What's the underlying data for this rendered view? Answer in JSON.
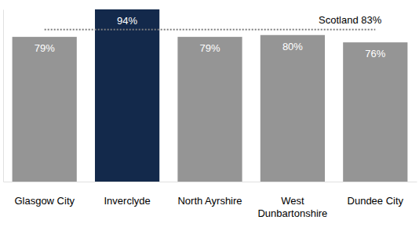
{
  "chart_data": {
    "type": "bar",
    "categories": [
      "Glasgow City",
      "Inverclyde",
      "North Ayrshire",
      "West Dunbartonshire",
      "Dundee City"
    ],
    "values": [
      79,
      94,
      79,
      80,
      76
    ],
    "value_labels": [
      "79%",
      "94%",
      "79%",
      "80%",
      "76%"
    ],
    "colors": [
      "#959595",
      "#13294b",
      "#959595",
      "#959595",
      "#959595"
    ],
    "ylim": [
      0,
      94
    ],
    "data_labels": true,
    "tick_labels": "x",
    "grid": false,
    "annotations": [
      {
        "text": "Scotland 83%",
        "y": 83
      }
    ]
  }
}
